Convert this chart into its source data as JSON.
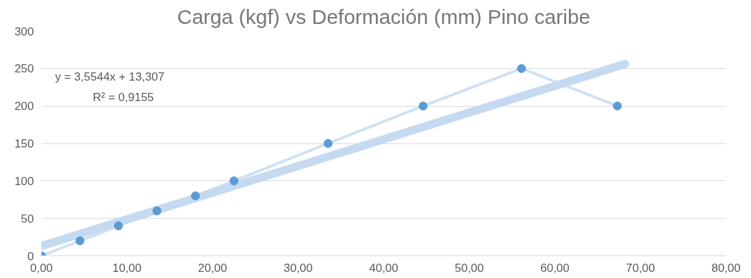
{
  "chart_data": {
    "type": "line",
    "title": "Carga (kgf) vs Deformación (mm) Pino caribe",
    "series": [
      {
        "name": null,
        "marker": "circle",
        "color": "#5b9bd5",
        "x": [
          0,
          4.5,
          9.0,
          13.5,
          18.0,
          22.5,
          33.5,
          44.6,
          56.1,
          67.3
        ],
        "values": [
          0,
          20,
          40,
          60,
          80,
          100,
          150,
          200,
          250,
          200
        ]
      },
      {
        "name": null,
        "marker": "none",
        "color": "#c5daf0",
        "x": [
          0,
          68.2
        ],
        "values": [
          13,
          256
        ]
      }
    ],
    "annotations": [
      "y = 3,5544x + 13,307",
      "R² = 0,9155"
    ],
    "xlim": [
      0,
      80
    ],
    "ylim": [
      0,
      300
    ],
    "xticks": [
      {
        "value": 0,
        "label": "0,00"
      },
      {
        "value": 10,
        "label": "10,00"
      },
      {
        "value": 20,
        "label": "20,00"
      },
      {
        "value": 30,
        "label": "30,00"
      },
      {
        "value": 40,
        "label": "40,00"
      },
      {
        "value": 50,
        "label": "50,00"
      },
      {
        "value": 60,
        "label": "60,00"
      },
      {
        "value": 70,
        "label": "70,00"
      },
      {
        "value": 80,
        "label": "80,00"
      }
    ],
    "yticks": [
      0,
      50,
      100,
      150,
      200,
      250,
      300
    ],
    "grid": "y"
  }
}
